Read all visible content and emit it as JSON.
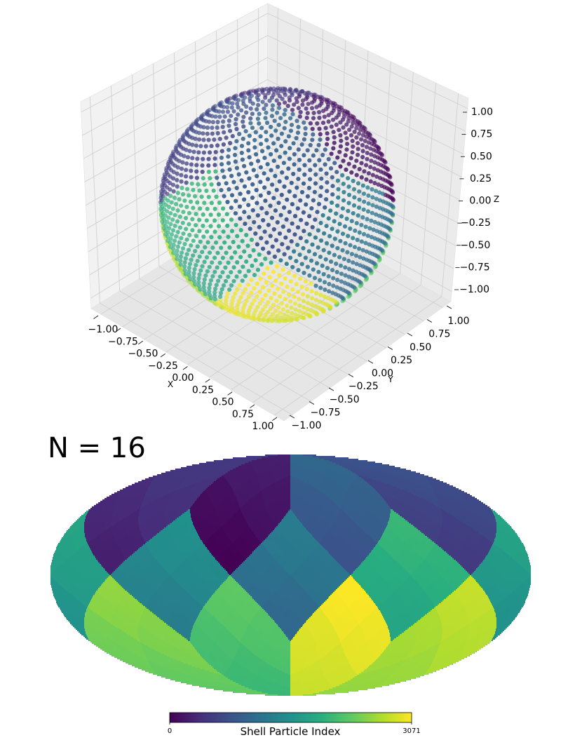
{
  "chart_data": [
    {
      "type": "scatter3d",
      "xlabel": "X",
      "ylabel": "Y",
      "zlabel": "Z",
      "xticks": [
        {
          "value": -1,
          "label": "−1.00"
        },
        {
          "value": -0.75,
          "label": "−0.75"
        },
        {
          "value": -0.5,
          "label": "−0.50"
        },
        {
          "value": -0.25,
          "label": "−0.25"
        },
        {
          "value": 0,
          "label": "0.00"
        },
        0.25,
        {
          "value": 0.5,
          "label": "0.50"
        },
        0.75,
        {
          "value": 1,
          "label": "1.00"
        }
      ],
      "yticks": [
        {
          "value": -1,
          "label": "−1.00"
        },
        {
          "value": -0.75,
          "label": "−0.75"
        },
        {
          "value": -0.5,
          "label": "−0.50"
        },
        {
          "value": -0.25,
          "label": "−0.25"
        },
        {
          "value": 0,
          "label": "0.00"
        },
        0.25,
        {
          "value": 0.5,
          "label": "0.50"
        },
        0.75,
        {
          "value": 1,
          "label": "1.00"
        }
      ],
      "zticks": [
        {
          "value": -1,
          "label": "−1.00"
        },
        {
          "value": -0.75,
          "label": "−0.75"
        },
        {
          "value": -0.5,
          "label": "−0.50"
        },
        {
          "value": -0.25,
          "label": "−0.25"
        },
        {
          "value": 0,
          "label": "0.00"
        },
        0.25,
        {
          "value": 0.5,
          "label": "0.50"
        },
        0.75,
        {
          "value": 1,
          "label": "1.00"
        }
      ],
      "xlim": [
        -1,
        1
      ],
      "ylim": [
        -1,
        1
      ],
      "zlim": [
        -1,
        1
      ],
      "grid": true
    },
    {
      "type": "mollweide",
      "title": "N = 16",
      "colorbar": {
        "label": "Shell Particle Index",
        "clim": [
          0,
          3071
        ],
        "ticks": [
          0,
          3071
        ]
      },
      "colormap": [
        "#440154",
        "#472d7b",
        "#3b528b",
        "#2c728e",
        "#21918c",
        "#28ae80",
        "#5ec962",
        "#addc30",
        "#fde725"
      ]
    }
  ]
}
